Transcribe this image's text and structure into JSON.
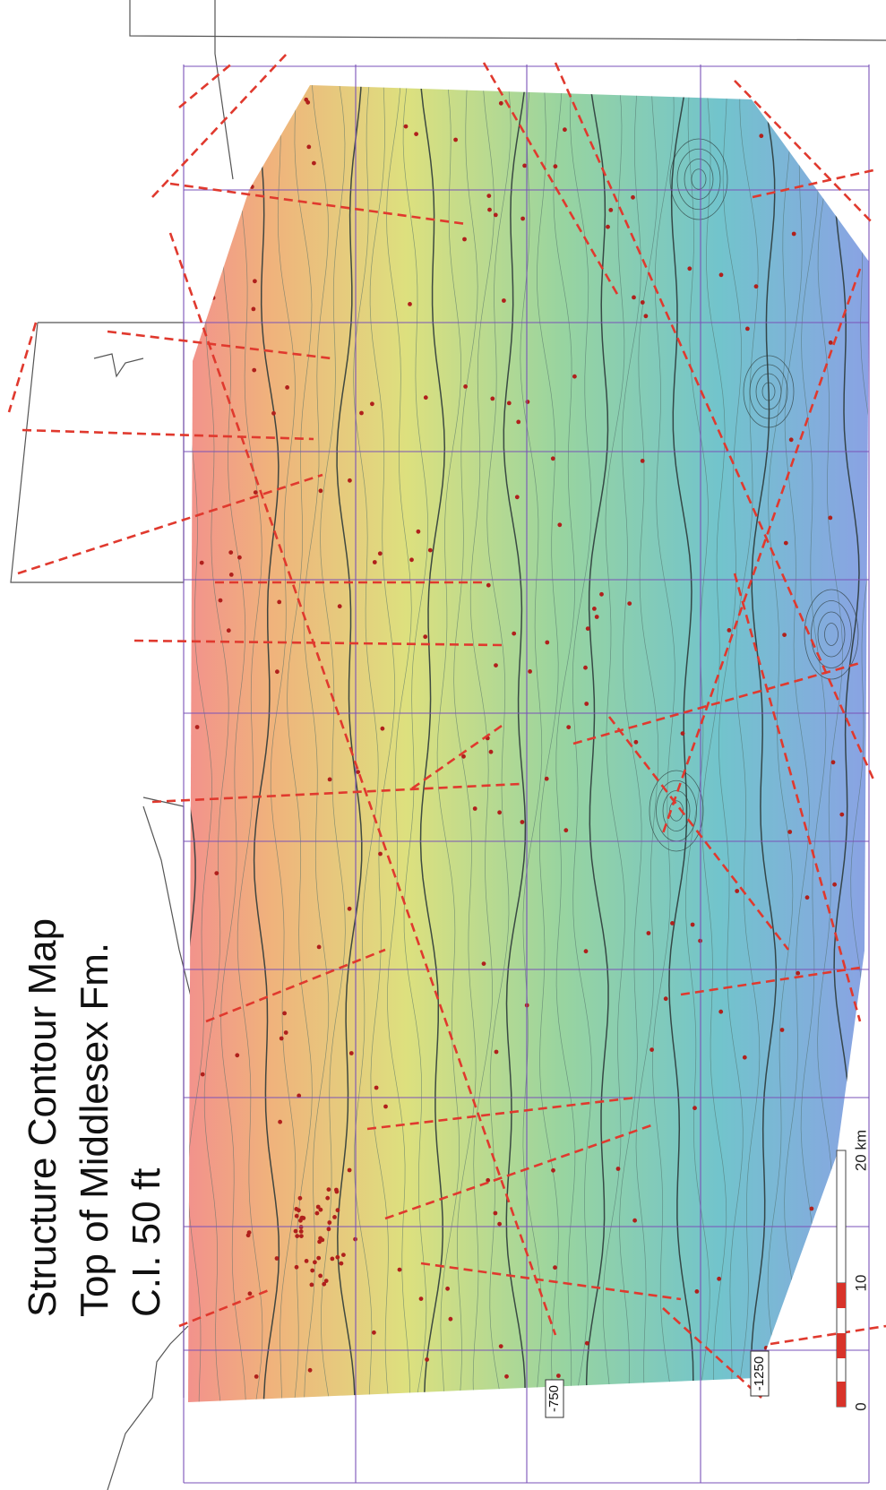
{
  "title": {
    "lines": [
      "Structure Contour Map",
      "Top of Middlesex Fm.",
      "C.I. 50 ft"
    ]
  },
  "contour_labels": [
    "-750",
    "-1250"
  ],
  "scale_bar": {
    "labels": [
      "0",
      "10",
      "20 km"
    ]
  }
}
